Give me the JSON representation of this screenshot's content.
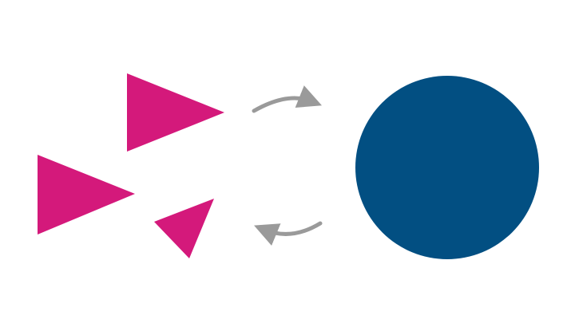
{
  "colors": {
    "background": "#ffffff",
    "triangles": "#d4197b",
    "circle": "#024f82",
    "arrows": "#9a9a9a"
  },
  "diagram": {
    "left_group": {
      "shape": "triangle",
      "count": 3
    },
    "cycle_arrows": [
      {
        "direction": "right",
        "icon": "curved-arrow-right-icon"
      },
      {
        "direction": "left",
        "icon": "curved-arrow-left-icon"
      }
    ],
    "right_shape": {
      "shape": "circle"
    }
  }
}
